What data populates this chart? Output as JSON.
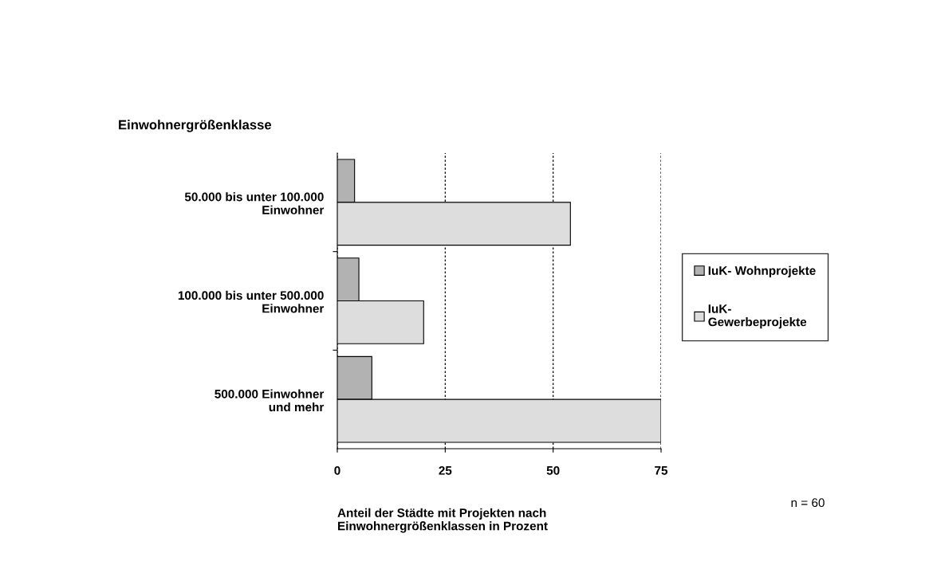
{
  "chart_data": {
    "type": "bar",
    "orientation": "horizontal",
    "ylabel": "Einwohnergrößenklasse",
    "xlabel": "Anteil der Städte mit Projekten nach\nEinwohnergrößenklassen in Prozent",
    "categories": [
      "50.000 bis unter 100.000\nEinwohner",
      "100.000 bis unter 500.000\nEinwohner",
      "500.000 Einwohner\nund mehr"
    ],
    "series": [
      {
        "name": "IuK- Wohnprojekte",
        "color": "#b2b2b2",
        "values": [
          4,
          5,
          8
        ]
      },
      {
        "name": "IuK-\nGewerbeprojekte",
        "color": "#dddddd",
        "values": [
          54,
          20,
          75
        ]
      }
    ],
    "xlim": [
      0,
      75
    ],
    "xticks": [
      0,
      25,
      50,
      75
    ],
    "grid": "x",
    "legend": "right",
    "annotations": [
      "n = 60"
    ]
  }
}
